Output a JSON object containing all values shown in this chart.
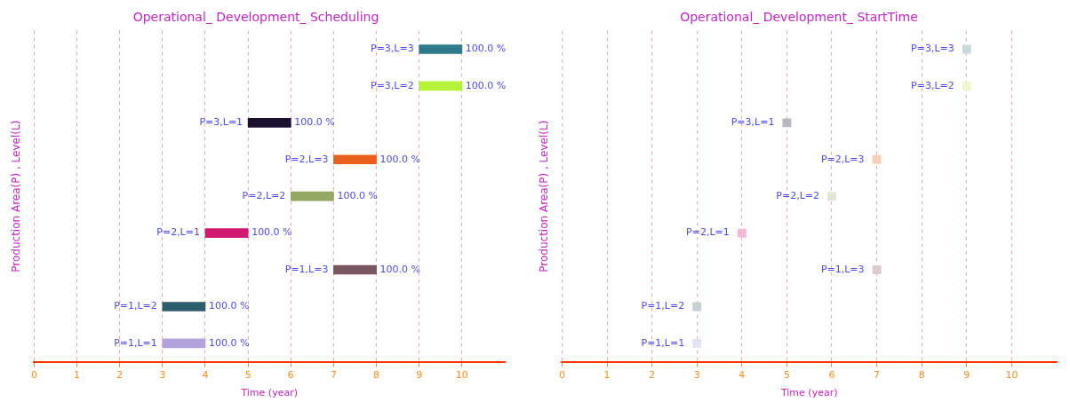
{
  "chart_data": [
    {
      "type": "bar",
      "orientation": "horizontal",
      "title": "Operational_ Development_ Scheduling",
      "xlabel": "Time (year)",
      "ylabel": "Production Area(P) , Level(L)",
      "categories": [
        "P=3,L=3",
        "P=3,L=2",
        "P=3,L=1",
        "P=2,L=3",
        "P=2,L=2",
        "P=2,L=1",
        "P=1,L=3",
        "P=1,L=2",
        "P=1,L=1"
      ],
      "base": [
        9,
        9,
        5,
        7,
        6,
        4,
        7,
        3,
        3
      ],
      "values": [
        1,
        1,
        1,
        1,
        1,
        1,
        1,
        1,
        1
      ],
      "colors": [
        "#2e7b8c",
        "#b5f23a",
        "#1a1030",
        "#e8601c",
        "#94a864",
        "#d01870",
        "#7a5560",
        "#2a5e6c",
        "#b3a3dd"
      ],
      "value_labels": [
        "100.0 %",
        "100.0 %",
        "100.0 %",
        "100.0 %",
        "100.0 %",
        "100.0 %",
        "100.0 %",
        "100.0 %",
        "100.0 %"
      ],
      "xlim": [
        0,
        11
      ],
      "xticks": [
        0,
        1,
        2,
        3,
        4,
        5,
        6,
        7,
        8,
        9,
        10
      ],
      "grid": "x",
      "tick_labels": "x"
    },
    {
      "type": "scatter",
      "orientation": "horizontal",
      "marker": "square",
      "title": "Operational_ Development_ StartTime",
      "xlabel": "Time (year)",
      "ylabel": "Production Area(P) , Level(L)",
      "categories": [
        "P=3,L=3",
        "P=3,L=2",
        "P=3,L=1",
        "P=2,L=3",
        "P=2,L=2",
        "P=2,L=1",
        "P=1,L=3",
        "P=1,L=2",
        "P=1,L=1"
      ],
      "values": [
        9,
        9,
        5,
        7,
        6,
        4,
        7,
        3,
        3
      ],
      "colors": [
        "#c8d8dc",
        "#eef8cc",
        "#b8b8c0",
        "#f8d0b8",
        "#e0e6d4",
        "#f2b8d4",
        "#dccccf",
        "#c4d0d2",
        "#e6e2f4"
      ],
      "xlim": [
        0,
        11
      ],
      "xticks": [
        0,
        1,
        2,
        3,
        4,
        5,
        6,
        7,
        8,
        9,
        10
      ],
      "grid": "x",
      "tick_labels": "x"
    }
  ]
}
